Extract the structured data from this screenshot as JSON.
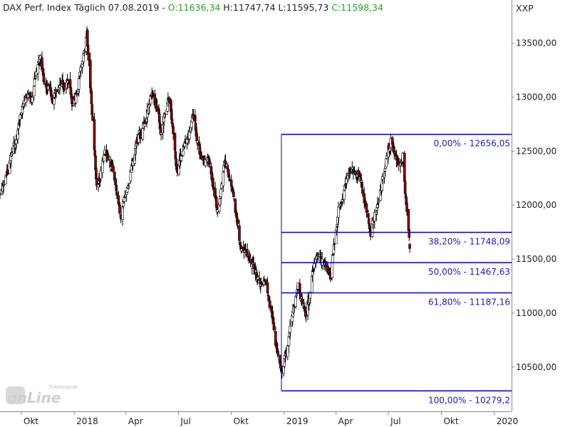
{
  "header": {
    "name": "DAX Perf. Index Täglich",
    "date": "07.08.2019",
    "dash": "-",
    "open": "O:11636,34",
    "high": "H:11747,74",
    "low": "L:11595,73",
    "close": "C:11598,34"
  },
  "symbol": "XXP",
  "logo": {
    "small_text": "Tradesignal",
    "big_text": "onLine"
  },
  "colors": {
    "up_candle": "#ffffff",
    "down_candle": "#8b0000",
    "fib_line": "#0000cc",
    "fib_text": "#1a1acc",
    "axis_text": "#222222",
    "open_close_text": "#2aa02a"
  },
  "chart_data": {
    "type": "candlestick",
    "instrument": "DAX Perf. Index",
    "y_axis": {
      "ylim": [
        10090,
        13900
      ],
      "ticks": [
        "10500,00",
        "11000,00",
        "11500,00",
        "12000,00",
        "12500,00",
        "13000,00",
        "13500,00"
      ],
      "tick_values": [
        10500,
        11000,
        11500,
        12000,
        12500,
        13000,
        13500
      ]
    },
    "x_axis": {
      "labels": [
        "Okt",
        "2018",
        "Apr",
        "Jul",
        "Okt",
        "2019",
        "Apr",
        "Jul",
        "Okt",
        "2020"
      ],
      "label_dates": [
        "2017-10-01",
        "2018-01-01",
        "2018-04-01",
        "2018-07-01",
        "2018-10-01",
        "2019-01-01",
        "2019-04-01",
        "2019-07-01",
        "2019-10-01",
        "2020-01-01"
      ],
      "xlim": [
        "2017-08-25",
        "2020-01-31"
      ]
    },
    "fibonacci": {
      "start_date": "2018-12-27",
      "end_date": "2020-01-31",
      "levels": [
        {
          "label": "0,00% - 12656,05",
          "value": 12656.05
        },
        {
          "label": "38,20% - 11748,09",
          "value": 11748.09
        },
        {
          "label": "50,00% - 11467,63",
          "value": 11467.63
        },
        {
          "label": "61,80% - 11187,16",
          "value": 11187.16
        },
        {
          "label": "100,00% - 10279,2",
          "value": 10279.2
        }
      ]
    },
    "price_path": [
      [
        "2017-08-25",
        12100
      ],
      [
        "2017-09-08",
        12300
      ],
      [
        "2017-09-22",
        12600
      ],
      [
        "2017-10-06",
        12950
      ],
      [
        "2017-10-20",
        13000
      ],
      [
        "2017-11-03",
        13450
      ],
      [
        "2017-11-10",
        13150
      ],
      [
        "2017-11-24",
        13000
      ],
      [
        "2017-12-08",
        13150
      ],
      [
        "2017-12-22",
        13100
      ],
      [
        "2017-12-29",
        12900
      ],
      [
        "2018-01-12",
        13250
      ],
      [
        "2018-01-23",
        13550
      ],
      [
        "2018-02-02",
        12800
      ],
      [
        "2018-02-09",
        12150
      ],
      [
        "2018-02-23",
        12450
      ],
      [
        "2018-03-09",
        12350
      ],
      [
        "2018-03-23",
        11900
      ],
      [
        "2018-04-06",
        12250
      ],
      [
        "2018-04-20",
        12550
      ],
      [
        "2018-05-04",
        12800
      ],
      [
        "2018-05-18",
        13050
      ],
      [
        "2018-06-01",
        12700
      ],
      [
        "2018-06-15",
        13000
      ],
      [
        "2018-06-29",
        12300
      ],
      [
        "2018-07-13",
        12550
      ],
      [
        "2018-07-27",
        12850
      ],
      [
        "2018-08-10",
        12400
      ],
      [
        "2018-08-24",
        12400
      ],
      [
        "2018-09-07",
        11950
      ],
      [
        "2018-09-21",
        12400
      ],
      [
        "2018-10-05",
        12100
      ],
      [
        "2018-10-19",
        11550
      ],
      [
        "2018-11-02",
        11500
      ],
      [
        "2018-11-16",
        11350
      ],
      [
        "2018-11-30",
        11250
      ],
      [
        "2018-12-14",
        10850
      ],
      [
        "2018-12-27",
        10400
      ],
      [
        "2019-01-11",
        10850
      ],
      [
        "2019-01-25",
        11250
      ],
      [
        "2019-02-08",
        10950
      ],
      [
        "2019-02-22",
        11450
      ],
      [
        "2019-03-08",
        11500
      ],
      [
        "2019-03-22",
        11350
      ],
      [
        "2019-04-05",
        11950
      ],
      [
        "2019-04-19",
        12200
      ],
      [
        "2019-05-03",
        12350
      ],
      [
        "2019-05-17",
        12150
      ],
      [
        "2019-05-31",
        11750
      ],
      [
        "2019-06-14",
        12050
      ],
      [
        "2019-06-28",
        12450
      ],
      [
        "2019-07-05",
        12600
      ],
      [
        "2019-07-19",
        12300
      ],
      [
        "2019-07-26",
        12450
      ],
      [
        "2019-08-02",
        11900
      ],
      [
        "2019-08-07",
        11598.34
      ]
    ],
    "last_candle": {
      "date": "2019-08-07",
      "open": 11636.34,
      "high": 11747.74,
      "low": 11595.73,
      "close": 11598.34
    }
  }
}
